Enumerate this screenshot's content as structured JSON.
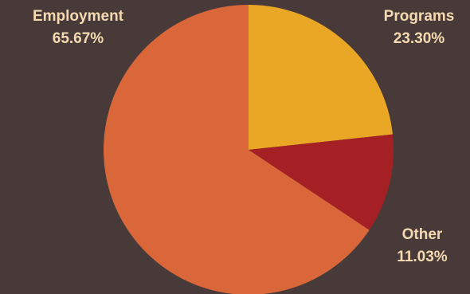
{
  "chart_data": {
    "type": "pie",
    "title": "",
    "start_angle_deg": 0,
    "direction": "clockwise",
    "slices": [
      {
        "label": "Programs",
        "value_label": "23.30%",
        "value": 23.3,
        "color": "#eaa726"
      },
      {
        "label": "Other",
        "value_label": "11.03%",
        "value": 11.03,
        "color": "#a52024"
      },
      {
        "label": "Employment",
        "value_label": "65.67%",
        "value": 65.67,
        "color": "#d9673a"
      }
    ],
    "label_color": "#f5d9b0",
    "background": "#473a38"
  }
}
